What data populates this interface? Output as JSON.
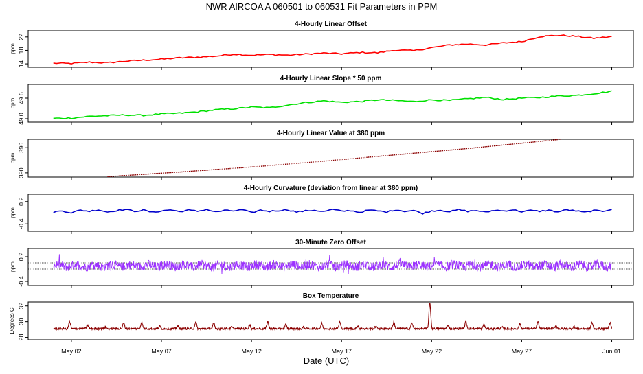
{
  "title": "NWR   AIRCOA A   060501 to 060531   Fit Parameters in PPM",
  "x_axis": {
    "label": "Date (UTC)",
    "ticks": [
      {
        "day": 2,
        "label": "May 02"
      },
      {
        "day": 7,
        "label": "May 07"
      },
      {
        "day": 12,
        "label": "May 12"
      },
      {
        "day": 17,
        "label": "May 17"
      },
      {
        "day": 22,
        "label": "May 22"
      },
      {
        "day": 27,
        "label": "May 27"
      },
      {
        "day": 32,
        "label": "Jun 01"
      }
    ],
    "range": [
      -0.4,
      33.2
    ]
  },
  "chart_data": [
    {
      "type": "line",
      "title": "4-Hourly Linear Offset",
      "ylabel": "ppm",
      "color": "#ff0000",
      "ylim": [
        13,
        24
      ],
      "yticks": [
        14,
        18,
        22
      ],
      "style": "line",
      "series": [
        {
          "x": [
            1.0,
            2.0,
            3.0,
            4.0,
            5.0,
            6.0,
            7.0,
            8.0,
            9.0,
            10.0,
            11.0,
            12.0,
            13.0,
            14.0,
            15.0,
            16.0,
            17.0,
            18.0,
            19.0,
            20.0,
            21.0,
            22.0,
            23.0,
            24.0,
            25.0,
            26.0,
            27.0,
            28.0,
            29.0,
            30.0,
            31.0,
            32.0
          ],
          "y": [
            14.2,
            14.1,
            14.5,
            14.3,
            14.8,
            15.1,
            15.4,
            15.8,
            16.0,
            16.3,
            16.9,
            16.6,
            16.8,
            16.6,
            16.9,
            17.2,
            17.0,
            17.4,
            17.3,
            18.1,
            17.9,
            18.8,
            19.6,
            19.9,
            19.6,
            20.2,
            20.6,
            22.1,
            22.5,
            22.2,
            21.6,
            22.1
          ]
        }
      ]
    },
    {
      "type": "line",
      "title": "4-Hourly Linear Slope * 50 ppm",
      "ylabel": "ppm",
      "color": "#00e000",
      "ylim": [
        48.9,
        50.0
      ],
      "yticks": [
        49.0,
        49.6
      ],
      "ytick_labels": [
        "49.0",
        "49.6"
      ],
      "style": "line",
      "series": [
        {
          "x": [
            1.0,
            2.0,
            3.0,
            4.0,
            5.0,
            6.0,
            7.0,
            8.0,
            9.0,
            10.0,
            11.0,
            12.0,
            13.0,
            14.0,
            15.0,
            16.0,
            17.0,
            18.0,
            19.0,
            20.0,
            21.0,
            22.0,
            23.0,
            24.0,
            25.0,
            26.0,
            27.0,
            28.0,
            29.0,
            30.0,
            31.0,
            32.0
          ],
          "y": [
            49.01,
            49.02,
            49.07,
            49.09,
            49.11,
            49.1,
            49.14,
            49.16,
            49.2,
            49.26,
            49.29,
            49.34,
            49.32,
            49.4,
            49.47,
            49.52,
            49.48,
            49.5,
            49.55,
            49.53,
            49.5,
            49.55,
            49.53,
            49.58,
            49.62,
            49.56,
            49.6,
            49.62,
            49.66,
            49.68,
            49.73,
            49.8
          ]
        }
      ]
    },
    {
      "type": "line",
      "title": "4-Hourly Linear Value at 380 ppm",
      "ylabel": "ppm",
      "color": "#8b0000",
      "ylim": [
        389,
        398
      ],
      "yticks": [
        390,
        396
      ],
      "style": "dots",
      "series": [
        {
          "x": [
            4.0,
            8.0,
            12.0,
            16.0,
            20.0,
            24.0,
            28.0,
            29.2
          ],
          "y": [
            389.1,
            390.2,
            391.4,
            392.8,
            394.3,
            395.8,
            397.5,
            398.0
          ]
        }
      ]
    },
    {
      "type": "line",
      "title": "4-Hourly Curvature (deviation from linear at 380 ppm)",
      "ylabel": "ppm",
      "color": "#0000cc",
      "ylim": [
        -0.6,
        0.4
      ],
      "yticks": [
        -0.4,
        0.2
      ],
      "ytick_labels": [
        "-0.4",
        "0.2"
      ],
      "style": "line",
      "series": [
        {
          "x": [
            1.0,
            1.5,
            2.0,
            2.5,
            3.0,
            3.5,
            4.0,
            4.5,
            5.0,
            5.5,
            6.0,
            6.5,
            7.0,
            7.5,
            8.0,
            8.5,
            9.0,
            9.5,
            10.0,
            10.5,
            11.0,
            11.5,
            12.0,
            12.5,
            13.0,
            13.5,
            14.0,
            14.5,
            15.0,
            15.5,
            16.0,
            16.5,
            17.0,
            17.5,
            18.0,
            18.5,
            19.0,
            19.5,
            20.0,
            20.5,
            21.0,
            21.5,
            22.0,
            22.5,
            23.0,
            23.5,
            24.0,
            24.5,
            25.0,
            25.5,
            26.0,
            26.5,
            27.0,
            27.5,
            28.0,
            28.5,
            29.0,
            29.5,
            30.0,
            30.5,
            31.0,
            31.5,
            32.0
          ],
          "y": [
            -0.08,
            -0.05,
            -0.1,
            -0.03,
            -0.06,
            -0.02,
            -0.08,
            -0.04,
            -0.01,
            -0.06,
            -0.03,
            -0.09,
            -0.05,
            -0.02,
            -0.07,
            -0.03,
            -0.06,
            -0.01,
            -0.08,
            -0.04,
            -0.05,
            -0.02,
            -0.1,
            -0.03,
            -0.06,
            -0.04,
            -0.02,
            -0.08,
            -0.05,
            -0.03,
            -0.07,
            -0.01,
            -0.06,
            -0.04,
            -0.09,
            -0.03,
            -0.05,
            -0.08,
            -0.02,
            -0.06,
            -0.04,
            -0.12,
            -0.05,
            -0.03,
            -0.07,
            -0.02,
            -0.06,
            -0.04,
            -0.09,
            -0.03,
            -0.05,
            -0.02,
            -0.07,
            -0.04,
            -0.06,
            -0.03,
            -0.08,
            -0.02,
            -0.05,
            -0.09,
            -0.04,
            -0.06,
            0.0
          ]
        }
      ]
    },
    {
      "type": "line",
      "title": "30-Minute Zero Offset",
      "ylabel": "ppm",
      "color": "#9b30ff",
      "ylim": [
        -0.5,
        0.4
      ],
      "yticks": [
        -0.4,
        0.2
      ],
      "ytick_labels": [
        "-0.4",
        "0.2"
      ],
      "reference_lines": [
        0.05,
        -0.1
      ],
      "style": "noisy",
      "series": [
        {
          "x": [
            1.0,
            32.0
          ],
          "y": [
            -0.02,
            -0.02
          ]
        }
      ]
    },
    {
      "type": "line",
      "title": "Box Temperature",
      "ylabel": "Degrees C",
      "color": "#8b0000",
      "ylim": [
        27.7,
        32.5
      ],
      "yticks": [
        28,
        30,
        32
      ],
      "style": "temperature",
      "series": [
        {
          "x": [
            1.0,
            32.0
          ],
          "y": [
            29.1,
            29.1
          ]
        }
      ]
    }
  ]
}
